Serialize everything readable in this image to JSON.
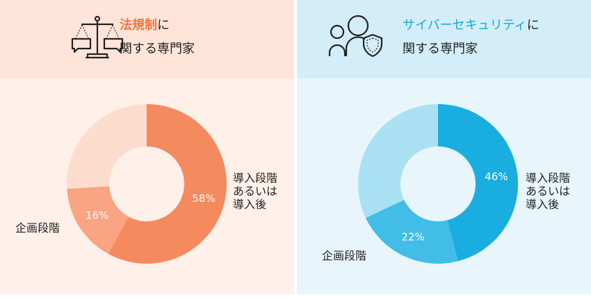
{
  "panels": [
    {
      "title_highlight": "法規制",
      "title_suffix": "に",
      "title_line2": "関する専門家",
      "icon": "scales-speech-bubbles-icon",
      "colors": [
        "#f58a5e",
        "#f9a483",
        "#fcdccd"
      ],
      "label_post": [
        "導入段階",
        "あるいは",
        "導入後"
      ],
      "label_plan": "企画段階"
    },
    {
      "title_highlight": "サイバーセキュリティ",
      "title_suffix": "に",
      "title_line2": "関する専門家",
      "icon": "people-shield-icon",
      "colors": [
        "#1aaddf",
        "#41bde8",
        "#a9e1f3"
      ],
      "label_post": [
        "導入段階",
        "あるいは",
        "導入後"
      ],
      "label_plan": "企画段階"
    }
  ],
  "chart_data": [
    {
      "type": "pie",
      "categories": [
        "導入段階あるいは導入後",
        "企画段階",
        ""
      ],
      "values": [
        58,
        16,
        26
      ],
      "data_labels": [
        "58%",
        "16%",
        ""
      ]
    },
    {
      "type": "pie",
      "categories": [
        "導入段階あるいは導入後",
        "企画段階",
        ""
      ],
      "values": [
        46,
        22,
        32
      ],
      "data_labels": [
        "46%",
        "22%",
        ""
      ]
    }
  ]
}
